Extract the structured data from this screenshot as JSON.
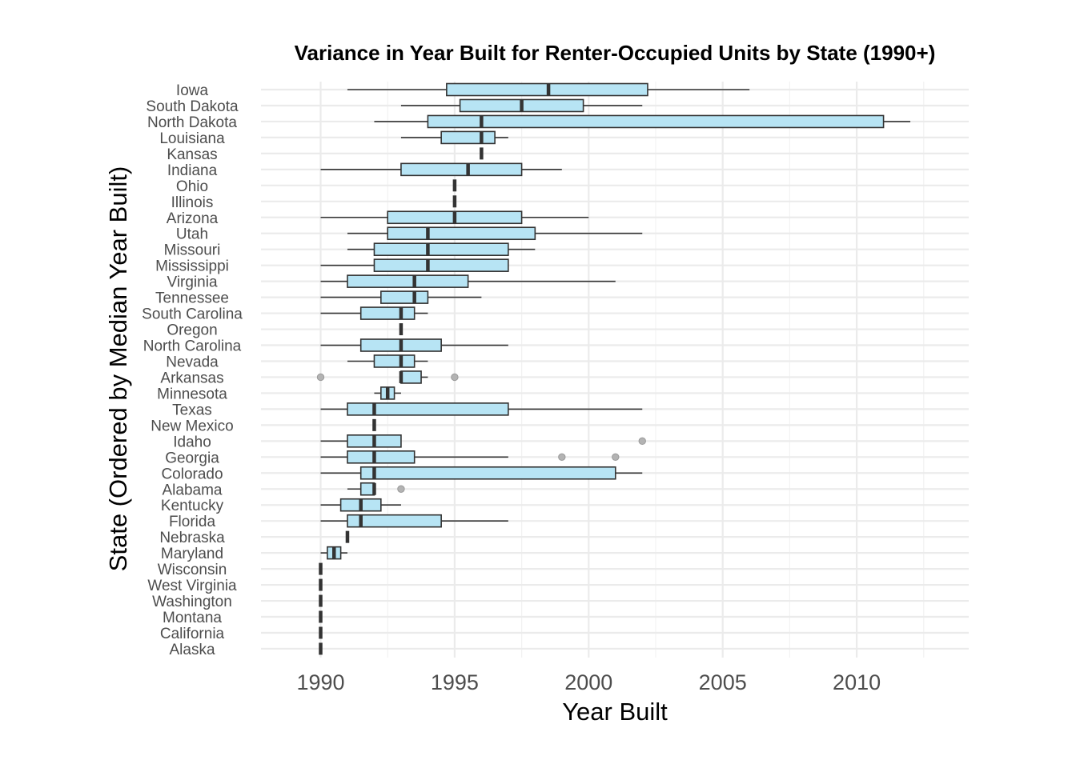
{
  "chart_data": {
    "type": "boxplot",
    "orientation": "horizontal",
    "title": "Variance in Year Built for Renter-Occupied Units by State (1990+)",
    "xlabel": "Year Built",
    "ylabel": "State (Ordered by Median Year Built)",
    "xlim": [
      1987.8,
      2014.2
    ],
    "xticks": [
      1990,
      1995,
      2000,
      2005,
      2010
    ],
    "xtick_labels": [
      "1990",
      "1995",
      "2000",
      "2005",
      "2010"
    ],
    "x_minor_ticks": [
      1987.5,
      1992.5,
      1997.5,
      2002.5,
      2007.5,
      2012.5
    ],
    "grid": true,
    "colors": {
      "box_fill": "#b7e4f4",
      "outline": "#333333",
      "outlier": "#b3b3b3",
      "grid": "#ebebeb"
    },
    "states": [
      {
        "name": "Iowa",
        "whisker_low": 1991,
        "q1": 1994.7,
        "median": 1998.5,
        "q3": 2002.2,
        "whisker_high": 2006,
        "outliers": []
      },
      {
        "name": "South Dakota",
        "whisker_low": 1993,
        "q1": 1995.2,
        "median": 1997.5,
        "q3": 1999.8,
        "whisker_high": 2002,
        "outliers": []
      },
      {
        "name": "North Dakota",
        "whisker_low": 1992,
        "q1": 1994,
        "median": 1996,
        "q3": 2011,
        "whisker_high": 2012,
        "outliers": []
      },
      {
        "name": "Louisiana",
        "whisker_low": 1993,
        "q1": 1994.5,
        "median": 1996,
        "q3": 1996.5,
        "whisker_high": 1997,
        "outliers": []
      },
      {
        "name": "Kansas",
        "whisker_low": 1996,
        "q1": 1996,
        "median": 1996,
        "q3": 1996,
        "whisker_high": 1996,
        "outliers": []
      },
      {
        "name": "Indiana",
        "whisker_low": 1990,
        "q1": 1993,
        "median": 1995.5,
        "q3": 1997.5,
        "whisker_high": 1999,
        "outliers": []
      },
      {
        "name": "Ohio",
        "whisker_low": 1995,
        "q1": 1995,
        "median": 1995,
        "q3": 1995,
        "whisker_high": 1995,
        "outliers": []
      },
      {
        "name": "Illinois",
        "whisker_low": 1995,
        "q1": 1995,
        "median": 1995,
        "q3": 1995,
        "whisker_high": 1995,
        "outliers": []
      },
      {
        "name": "Arizona",
        "whisker_low": 1990,
        "q1": 1992.5,
        "median": 1995,
        "q3": 1997.5,
        "whisker_high": 2000,
        "outliers": []
      },
      {
        "name": "Utah",
        "whisker_low": 1991,
        "q1": 1992.5,
        "median": 1994,
        "q3": 1998,
        "whisker_high": 2002,
        "outliers": []
      },
      {
        "name": "Missouri",
        "whisker_low": 1991,
        "q1": 1992,
        "median": 1994,
        "q3": 1997,
        "whisker_high": 1998,
        "outliers": []
      },
      {
        "name": "Mississippi",
        "whisker_low": 1990,
        "q1": 1992,
        "median": 1994,
        "q3": 1997,
        "whisker_high": 1997,
        "outliers": []
      },
      {
        "name": "Virginia",
        "whisker_low": 1990,
        "q1": 1991,
        "median": 1993.5,
        "q3": 1995.5,
        "whisker_high": 2001,
        "outliers": []
      },
      {
        "name": "Tennessee",
        "whisker_low": 1990,
        "q1": 1992.25,
        "median": 1993.5,
        "q3": 1994,
        "whisker_high": 1996,
        "outliers": []
      },
      {
        "name": "South Carolina",
        "whisker_low": 1990,
        "q1": 1991.5,
        "median": 1993,
        "q3": 1993.5,
        "whisker_high": 1994,
        "outliers": []
      },
      {
        "name": "Oregon",
        "whisker_low": 1993,
        "q1": 1993,
        "median": 1993,
        "q3": 1993,
        "whisker_high": 1993,
        "outliers": []
      },
      {
        "name": "North Carolina",
        "whisker_low": 1990,
        "q1": 1991.5,
        "median": 1993,
        "q3": 1994.5,
        "whisker_high": 1997,
        "outliers": []
      },
      {
        "name": "Nevada",
        "whisker_low": 1991,
        "q1": 1992,
        "median": 1993,
        "q3": 1993.5,
        "whisker_high": 1994,
        "outliers": []
      },
      {
        "name": "Arkansas",
        "whisker_low": 1993,
        "q1": 1993,
        "median": 1993,
        "q3": 1993.75,
        "whisker_high": 1994,
        "outliers": [
          1990,
          1995
        ]
      },
      {
        "name": "Minnesota",
        "whisker_low": 1992,
        "q1": 1992.25,
        "median": 1992.5,
        "q3": 1992.75,
        "whisker_high": 1993,
        "outliers": []
      },
      {
        "name": "Texas",
        "whisker_low": 1990,
        "q1": 1991,
        "median": 1992,
        "q3": 1997,
        "whisker_high": 2002,
        "outliers": []
      },
      {
        "name": "New Mexico",
        "whisker_low": 1992,
        "q1": 1992,
        "median": 1992,
        "q3": 1992,
        "whisker_high": 1992,
        "outliers": []
      },
      {
        "name": "Idaho",
        "whisker_low": 1990,
        "q1": 1991,
        "median": 1992,
        "q3": 1993,
        "whisker_high": 1993,
        "outliers": [
          2002
        ]
      },
      {
        "name": "Georgia",
        "whisker_low": 1990,
        "q1": 1991,
        "median": 1992,
        "q3": 1993.5,
        "whisker_high": 1997,
        "outliers": [
          1999,
          2001
        ]
      },
      {
        "name": "Colorado",
        "whisker_low": 1990,
        "q1": 1991.5,
        "median": 1992,
        "q3": 2001,
        "whisker_high": 2002,
        "outliers": []
      },
      {
        "name": "Alabama",
        "whisker_low": 1991,
        "q1": 1991.5,
        "median": 1992,
        "q3": 1992,
        "whisker_high": 1992,
        "outliers": [
          1993
        ]
      },
      {
        "name": "Kentucky",
        "whisker_low": 1990,
        "q1": 1990.75,
        "median": 1991.5,
        "q3": 1992.25,
        "whisker_high": 1993,
        "outliers": []
      },
      {
        "name": "Florida",
        "whisker_low": 1990,
        "q1": 1991,
        "median": 1991.5,
        "q3": 1994.5,
        "whisker_high": 1997,
        "outliers": []
      },
      {
        "name": "Nebraska",
        "whisker_low": 1991,
        "q1": 1991,
        "median": 1991,
        "q3": 1991,
        "whisker_high": 1991,
        "outliers": []
      },
      {
        "name": "Maryland",
        "whisker_low": 1990,
        "q1": 1990.25,
        "median": 1990.5,
        "q3": 1990.75,
        "whisker_high": 1991,
        "outliers": []
      },
      {
        "name": "Wisconsin",
        "whisker_low": 1990,
        "q1": 1990,
        "median": 1990,
        "q3": 1990,
        "whisker_high": 1990,
        "outliers": []
      },
      {
        "name": "West Virginia",
        "whisker_low": 1990,
        "q1": 1990,
        "median": 1990,
        "q3": 1990,
        "whisker_high": 1990,
        "outliers": []
      },
      {
        "name": "Washington",
        "whisker_low": 1990,
        "q1": 1990,
        "median": 1990,
        "q3": 1990,
        "whisker_high": 1990,
        "outliers": []
      },
      {
        "name": "Montana",
        "whisker_low": 1990,
        "q1": 1990,
        "median": 1990,
        "q3": 1990,
        "whisker_high": 1990,
        "outliers": []
      },
      {
        "name": "California",
        "whisker_low": 1990,
        "q1": 1990,
        "median": 1990,
        "q3": 1990,
        "whisker_high": 1990,
        "outliers": []
      },
      {
        "name": "Alaska",
        "whisker_low": 1990,
        "q1": 1990,
        "median": 1990,
        "q3": 1990,
        "whisker_high": 1990,
        "outliers": []
      }
    ]
  }
}
